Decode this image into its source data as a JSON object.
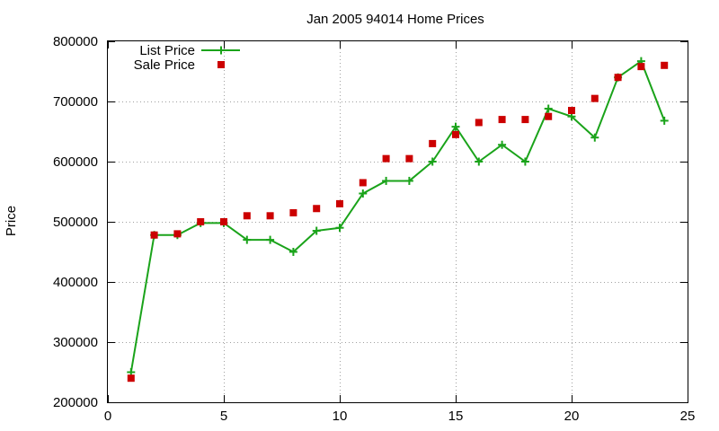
{
  "chart_data": {
    "type": "line",
    "title": "Jan 2005 94014 Home Prices",
    "xlabel": "",
    "ylabel": "Price",
    "xlim": [
      0,
      25
    ],
    "ylim": [
      200000,
      800000
    ],
    "xticks": [
      0,
      5,
      10,
      15,
      20,
      25
    ],
    "yticks": [
      200000,
      300000,
      400000,
      500000,
      600000,
      700000,
      800000
    ],
    "grid": true,
    "legend_position": "top-left",
    "series": [
      {
        "name": "List Price",
        "style": "linespoints",
        "marker": "plus",
        "color": "#1aa31a",
        "x": [
          1,
          2,
          3,
          4,
          5,
          6,
          7,
          8,
          9,
          10,
          11,
          12,
          13,
          14,
          15,
          16,
          17,
          18,
          19,
          20,
          21,
          22,
          23,
          24
        ],
        "values": [
          250000,
          478000,
          478000,
          498000,
          498000,
          470000,
          470000,
          450000,
          485000,
          490000,
          547000,
          568000,
          568000,
          600000,
          658000,
          600000,
          628000,
          600000,
          688000,
          675000,
          640000,
          740000,
          767000,
          668000
        ]
      },
      {
        "name": "Sale Price",
        "style": "points",
        "marker": "square",
        "color": "#cc0000",
        "x": [
          1,
          2,
          3,
          4,
          5,
          6,
          7,
          8,
          9,
          10,
          11,
          12,
          13,
          14,
          15,
          16,
          17,
          18,
          19,
          20,
          21,
          22,
          23,
          24
        ],
        "values": [
          240000,
          478000,
          480000,
          500000,
          500000,
          510000,
          510000,
          515000,
          522000,
          530000,
          565000,
          605000,
          605000,
          630000,
          645000,
          665000,
          670000,
          670000,
          675000,
          685000,
          705000,
          740000,
          758000,
          760000
        ]
      }
    ]
  }
}
